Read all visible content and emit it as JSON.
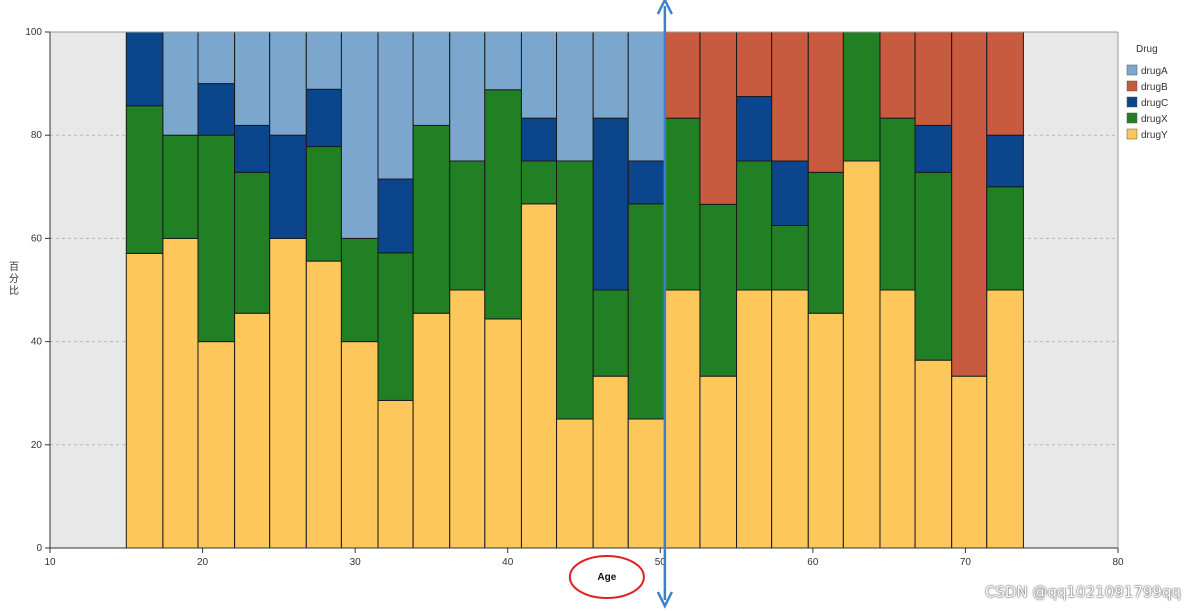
{
  "chart_data": {
    "type": "bar",
    "stacked": true,
    "normalized_percent": true,
    "xlabel": "Age",
    "ylabel": "百分比",
    "xlim": [
      10,
      80
    ],
    "ylim": [
      0,
      100
    ],
    "xticks": [
      10,
      20,
      30,
      40,
      50,
      60,
      70,
      80
    ],
    "yticks": [
      0,
      20,
      40,
      60,
      80,
      100
    ],
    "legend_title": "Drug",
    "legend_position": "top-right",
    "colors": {
      "drugA": "#7ba7cf",
      "drugB": "#c85a3f",
      "drugC": "#0b468c",
      "drugX": "#218024",
      "drugY": "#fdc75c"
    },
    "bins": [
      {
        "x0": 15.0,
        "x1": 17.4,
        "drugY": 57.1,
        "drugX": 28.6,
        "drugC": 14.3,
        "drugB": 0,
        "drugA": 0
      },
      {
        "x0": 17.4,
        "x1": 19.7,
        "drugY": 60.0,
        "drugX": 20.0,
        "drugC": 0,
        "drugB": 0,
        "drugA": 20.0
      },
      {
        "x0": 19.7,
        "x1": 22.1,
        "drugY": 40.0,
        "drugX": 40.0,
        "drugC": 10.0,
        "drugB": 0,
        "drugA": 10.0
      },
      {
        "x0": 22.1,
        "x1": 24.4,
        "drugY": 45.5,
        "drugX": 27.3,
        "drugC": 9.1,
        "drugB": 0,
        "drugA": 18.1
      },
      {
        "x0": 24.4,
        "x1": 26.8,
        "drugY": 60.0,
        "drugX": 0,
        "drugC": 20.0,
        "drugB": 0,
        "drugA": 20.0
      },
      {
        "x0": 26.8,
        "x1": 29.1,
        "drugY": 55.6,
        "drugX": 22.2,
        "drugC": 11.1,
        "drugB": 0,
        "drugA": 11.1
      },
      {
        "x0": 29.1,
        "x1": 31.5,
        "drugY": 40.0,
        "drugX": 20.0,
        "drugC": 0,
        "drugB": 0,
        "drugA": 40.0
      },
      {
        "x0": 31.5,
        "x1": 33.8,
        "drugY": 28.6,
        "drugX": 28.6,
        "drugC": 14.3,
        "drugB": 0,
        "drugA": 28.5
      },
      {
        "x0": 33.8,
        "x1": 36.2,
        "drugY": 45.5,
        "drugX": 36.4,
        "drugC": 0,
        "drugB": 0,
        "drugA": 18.1
      },
      {
        "x0": 36.2,
        "x1": 38.5,
        "drugY": 50.0,
        "drugX": 25.0,
        "drugC": 0,
        "drugB": 0,
        "drugA": 25.0
      },
      {
        "x0": 38.5,
        "x1": 40.9,
        "drugY": 44.4,
        "drugX": 44.4,
        "drugC": 0,
        "drugB": 0,
        "drugA": 11.2
      },
      {
        "x0": 40.9,
        "x1": 43.2,
        "drugY": 66.7,
        "drugX": 8.3,
        "drugC": 8.3,
        "drugB": 0,
        "drugA": 16.7
      },
      {
        "x0": 43.2,
        "x1": 45.6,
        "drugY": 25.0,
        "drugX": 50.0,
        "drugC": 0,
        "drugB": 0,
        "drugA": 25.0
      },
      {
        "x0": 45.6,
        "x1": 47.9,
        "drugY": 33.3,
        "drugX": 16.7,
        "drugC": 33.3,
        "drugB": 0,
        "drugA": 16.7
      },
      {
        "x0": 47.9,
        "x1": 50.3,
        "drugY": 25.0,
        "drugX": 41.7,
        "drugC": 8.3,
        "drugB": 0,
        "drugA": 25.0
      },
      {
        "x0": 50.3,
        "x1": 52.6,
        "drugY": 50.0,
        "drugX": 33.3,
        "drugC": 0,
        "drugB": 16.7,
        "drugA": 0
      },
      {
        "x0": 52.6,
        "x1": 55.0,
        "drugY": 33.3,
        "drugX": 33.3,
        "drugC": 0,
        "drugB": 33.4,
        "drugA": 0
      },
      {
        "x0": 55.0,
        "x1": 57.3,
        "drugY": 50.0,
        "drugX": 25.0,
        "drugC": 12.5,
        "drugB": 12.5,
        "drugA": 0
      },
      {
        "x0": 57.3,
        "x1": 59.7,
        "drugY": 50.0,
        "drugX": 12.5,
        "drugC": 12.5,
        "drugB": 25.0,
        "drugA": 0
      },
      {
        "x0": 59.7,
        "x1": 62.0,
        "drugY": 45.5,
        "drugX": 27.3,
        "drugC": 0,
        "drugB": 27.2,
        "drugA": 0
      },
      {
        "x0": 62.0,
        "x1": 64.4,
        "drugY": 75.0,
        "drugX": 25.0,
        "drugC": 0,
        "drugB": 0,
        "drugA": 0
      },
      {
        "x0": 64.4,
        "x1": 66.7,
        "drugY": 50.0,
        "drugX": 33.3,
        "drugC": 0,
        "drugB": 16.7,
        "drugA": 0
      },
      {
        "x0": 66.7,
        "x1": 69.1,
        "drugY": 36.4,
        "drugX": 36.4,
        "drugC": 9.1,
        "drugB": 18.1,
        "drugA": 0
      },
      {
        "x0": 69.1,
        "x1": 71.4,
        "drugY": 33.3,
        "drugX": 0,
        "drugC": 0,
        "drugB": 66.7,
        "drugA": 0
      },
      {
        "x0": 71.4,
        "x1": 73.8,
        "drugY": 50.0,
        "drugX": 20.0,
        "drugC": 10.0,
        "drugB": 20.0,
        "drugA": 0
      }
    ],
    "stack_order": [
      "drugY",
      "drugX",
      "drugC",
      "drugB",
      "drugA"
    ],
    "legend_order": [
      "drugA",
      "drugB",
      "drugC",
      "drugX",
      "drugY"
    ],
    "annotation_vertical_line_x": 50.3
  },
  "watermark": "CSDN @qq1021091799qq"
}
